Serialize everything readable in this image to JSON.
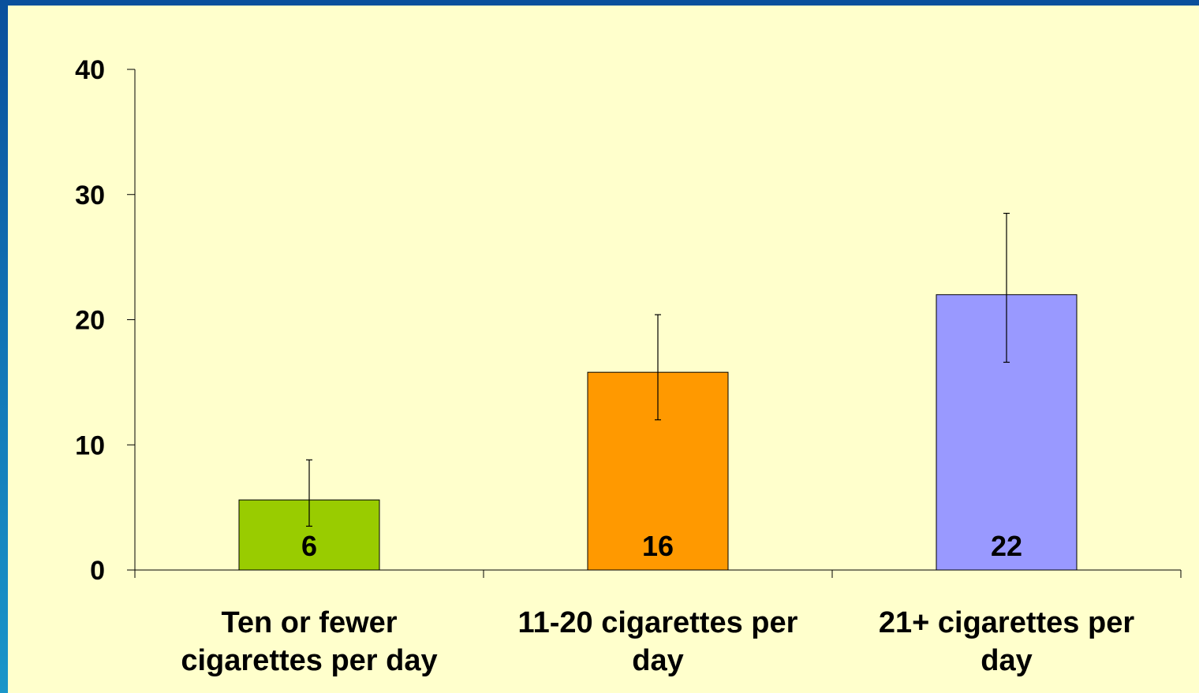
{
  "chart_data": {
    "type": "bar",
    "title": "",
    "xlabel": "",
    "ylabel": "",
    "ylim": [
      0,
      40
    ],
    "yticks": [
      0,
      10,
      20,
      30,
      40
    ],
    "grid": false,
    "categories": [
      [
        "Ten or fewer",
        "cigarettes per day"
      ],
      [
        "11-20 cigarettes per",
        "day"
      ],
      [
        "21+ cigarettes per",
        "day"
      ]
    ],
    "values": [
      5.6,
      15.8,
      22
    ],
    "data_labels": [
      "6",
      "16",
      "22"
    ],
    "error_bars": [
      {
        "low": 3.5,
        "high": 8.8
      },
      {
        "low": 12,
        "high": 20.4
      },
      {
        "low": 16.6,
        "high": 28.5
      }
    ],
    "bar_colors": [
      "#99cc00",
      "#ff9900",
      "#9999ff"
    ]
  }
}
